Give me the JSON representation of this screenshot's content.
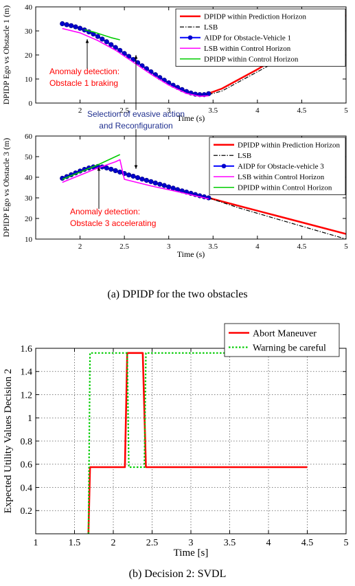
{
  "captions": {
    "a": "(a) DPIDP for the two obstacles",
    "b": "(b) Decision 2: SVDL"
  },
  "chart_data": [
    {
      "id": "obstacle1",
      "type": "line",
      "xlabel": "Time (s)",
      "ylabel": "DPIDP Ego vs Obstacle 1 (m)",
      "xlim": [
        1.5,
        5
      ],
      "ylim": [
        0,
        40
      ],
      "xticks": [
        2,
        2.5,
        3,
        3.5,
        4,
        4.5,
        5
      ],
      "xtick_labels": [
        "2",
        "2.5",
        "3",
        "3.5",
        "4",
        "4.5",
        "5"
      ],
      "yticks": [
        0,
        10,
        20,
        30,
        40
      ],
      "ytick_labels": [
        "0",
        "10",
        "20",
        "30",
        "40"
      ],
      "grid": false,
      "legend_position": "top-right",
      "series": [
        {
          "name": "DPIDP within Prediction Horizon",
          "color": "#ff0000",
          "style": "solid",
          "width": 2.5,
          "x": [
            3.45,
            3.6,
            3.8,
            4.0,
            4.2,
            4.4,
            4.6,
            4.8,
            5.0
          ],
          "y": [
            4.0,
            6.0,
            10.0,
            14.0,
            18.5,
            23.0,
            27.5,
            32.0,
            36.5
          ]
        },
        {
          "name": "LSB",
          "color": "#000000",
          "style": "dashdot",
          "width": 1.2,
          "x": [
            3.45,
            3.6,
            3.8,
            4.0,
            4.2,
            4.4,
            4.6,
            4.8,
            5.0
          ],
          "y": [
            3.5,
            5.0,
            9.0,
            13.0,
            17.0,
            21.5,
            26.0,
            30.5,
            35.0
          ]
        },
        {
          "name": "AIDP for Obstacle-Vehicle 1",
          "color": "#0000ff",
          "style": "marker",
          "marker_color": "#0000cc",
          "width": 2,
          "x": [
            1.8,
            1.85,
            1.9,
            1.95,
            2.0,
            2.05,
            2.1,
            2.15,
            2.2,
            2.25,
            2.3,
            2.35,
            2.4,
            2.45,
            2.5,
            2.55,
            2.6,
            2.65,
            2.7,
            2.75,
            2.8,
            2.85,
            2.9,
            2.95,
            3.0,
            3.05,
            3.1,
            3.15,
            3.2,
            3.25,
            3.3,
            3.35,
            3.4,
            3.45
          ],
          "y": [
            33.0,
            32.6,
            32.2,
            31.7,
            31.1,
            30.4,
            29.6,
            28.7,
            27.7,
            26.6,
            25.5,
            24.3,
            23.1,
            21.9,
            20.6,
            19.4,
            18.1,
            16.8,
            15.5,
            14.3,
            13.0,
            11.8,
            10.6,
            9.5,
            8.4,
            7.4,
            6.5,
            5.6,
            4.8,
            4.2,
            3.7,
            3.5,
            3.5,
            3.9
          ]
        },
        {
          "name": "LSB within Control Horizon",
          "color": "#ff00ff",
          "style": "solid",
          "width": 1.6,
          "x": [
            1.8,
            2.0,
            2.2,
            2.4,
            2.6,
            2.8,
            3.0,
            3.2,
            3.35,
            3.45
          ],
          "y": [
            31.0,
            29.2,
            26.0,
            22.0,
            17.0,
            12.0,
            7.5,
            4.0,
            2.8,
            3.0
          ]
        },
        {
          "name": "DPIDP within Control Horizon",
          "color": "#00cc00",
          "style": "solid",
          "width": 1.6,
          "x": [
            2.05,
            2.15,
            2.25,
            2.35,
            2.45
          ],
          "y": [
            30.5,
            29.6,
            28.4,
            27.2,
            26.3
          ]
        }
      ]
    },
    {
      "id": "obstacle3",
      "type": "line",
      "xlabel": "Time (s)",
      "ylabel": "DPIDP Ego vs Obstacle 3 (m)",
      "xlim": [
        1.5,
        5
      ],
      "ylim": [
        10,
        60
      ],
      "xticks": [
        2,
        2.5,
        3,
        3.5,
        4,
        4.5,
        5
      ],
      "xtick_labels": [
        "2",
        "2.5",
        "3",
        "3.5",
        "4",
        "4.5",
        "5"
      ],
      "yticks": [
        10,
        20,
        30,
        40,
        50,
        60
      ],
      "ytick_labels": [
        "10",
        "20",
        "30",
        "40",
        "50",
        "60"
      ],
      "grid": false,
      "legend_position": "top-right",
      "series": [
        {
          "name": "DPIDP within Prediction Horizon",
          "color": "#ff0000",
          "style": "solid",
          "width": 2.5,
          "x": [
            3.45,
            3.8,
            4.2,
            4.6,
            5.0
          ],
          "y": [
            30.0,
            26.0,
            21.5,
            17.0,
            12.5
          ]
        },
        {
          "name": "LSB",
          "color": "#000000",
          "style": "dashdot",
          "width": 1.2,
          "x": [
            3.45,
            3.8,
            4.2,
            4.6,
            5.0
          ],
          "y": [
            30.0,
            25.0,
            20.0,
            15.0,
            10.0
          ]
        },
        {
          "name": "AIDP for Obstacle-vehicle 3",
          "color": "#0000ff",
          "style": "marker",
          "marker_color": "#0000cc",
          "width": 2,
          "x": [
            1.8,
            1.85,
            1.9,
            1.95,
            2.0,
            2.05,
            2.1,
            2.15,
            2.2,
            2.25,
            2.3,
            2.35,
            2.4,
            2.45,
            2.5,
            2.55,
            2.6,
            2.65,
            2.7,
            2.75,
            2.8,
            2.85,
            2.9,
            2.95,
            3.0,
            3.05,
            3.1,
            3.15,
            3.2,
            3.25,
            3.3,
            3.35,
            3.4,
            3.45
          ],
          "y": [
            39.5,
            40.3,
            41.2,
            42.1,
            43.0,
            43.8,
            44.5,
            45.0,
            45.2,
            45.0,
            44.5,
            43.9,
            43.2,
            42.5,
            41.8,
            41.1,
            40.5,
            39.8,
            39.1,
            38.5,
            37.9,
            37.2,
            36.6,
            36.0,
            35.3,
            34.7,
            34.0,
            33.4,
            32.8,
            32.2,
            31.6,
            31.0,
            30.5,
            30.0
          ]
        },
        {
          "name": "LSB within Control Horizon",
          "color": "#ff00ff",
          "style": "solid",
          "width": 1.6,
          "x": [
            1.8,
            2.0,
            2.2,
            2.3,
            2.4,
            2.45,
            2.5,
            2.8,
            3.1,
            3.45
          ],
          "y": [
            37.5,
            41.0,
            44.5,
            46.0,
            47.5,
            48.5,
            39.0,
            35.8,
            33.0,
            29.5
          ]
        },
        {
          "name": "DPIDP within Control Horizon",
          "color": "#00cc00",
          "style": "solid",
          "width": 1.6,
          "x": [
            1.8,
            2.0,
            2.2,
            2.3,
            2.4,
            2.45
          ],
          "y": [
            39.0,
            42.5,
            46.0,
            48.0,
            50.0,
            51.0
          ]
        }
      ]
    },
    {
      "id": "decision2",
      "type": "line",
      "xlabel": "Time [s]",
      "ylabel": "Expected Utility Values Decision 2",
      "xlim": [
        1,
        5
      ],
      "ylim": [
        0,
        1.6
      ],
      "xticks": [
        1,
        1.5,
        2,
        2.5,
        3,
        3.5,
        4,
        4.5,
        5
      ],
      "xtick_labels": [
        "1",
        "1.5",
        "2",
        "2.5",
        "3",
        "3.5",
        "4",
        "4.5",
        "5"
      ],
      "yticks": [
        0.2,
        0.4,
        0.6,
        0.8,
        1,
        1.2,
        1.4,
        1.6
      ],
      "ytick_labels": [
        "0.2",
        "0.4",
        "0.6",
        "0.8",
        "1",
        "1.2",
        "1.4",
        "1.6"
      ],
      "grid": true,
      "legend_position": "top-right",
      "series": [
        {
          "name": "Abort Maneuver",
          "color": "#ff0000",
          "style": "solid",
          "width": 2.6,
          "x": [
            1.68,
            1.7,
            2.15,
            2.18,
            2.38,
            2.42,
            4.5
          ],
          "y": [
            0.0,
            0.575,
            0.575,
            1.56,
            1.56,
            0.575,
            0.575
          ]
        },
        {
          "name": "Warning be careful",
          "color": "#00cc00",
          "style": "dotted",
          "width": 2.2,
          "x": [
            1.68,
            1.7,
            2.18,
            2.2,
            2.4,
            2.42,
            4.5
          ],
          "y": [
            0.0,
            1.56,
            1.56,
            0.575,
            0.575,
            1.56,
            1.56
          ]
        }
      ]
    }
  ],
  "annotations": {
    "anomaly1": [
      "Anomaly detection:",
      "Obstacle 1 braking"
    ],
    "selection": [
      "Selection of evasive action",
      "and Reconfiguration"
    ],
    "anomaly3": [
      "Anomaly detection:",
      "Obstacle 3 accelerating"
    ],
    "anomaly_color": "#ff0000",
    "selection_color": "#1f2f8f"
  }
}
